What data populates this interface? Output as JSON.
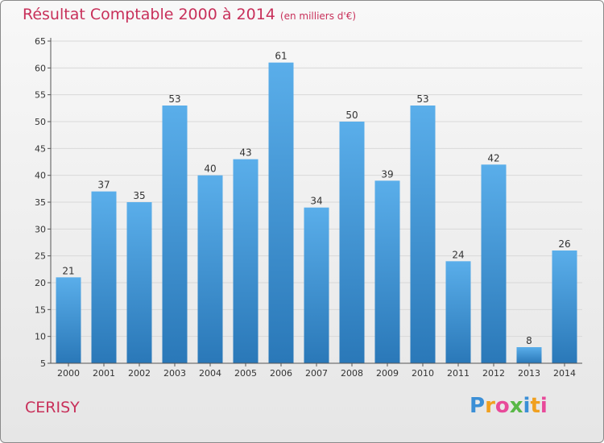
{
  "chart_data": {
    "type": "bar",
    "title": "Résultat Comptable 2000 à 2014",
    "subtitle": "(en milliers d'€)",
    "categories": [
      "2000",
      "2001",
      "2002",
      "2003",
      "2004",
      "2005",
      "2006",
      "2007",
      "2008",
      "2009",
      "2010",
      "2011",
      "2012",
      "2013",
      "2014"
    ],
    "values": [
      21,
      37,
      35,
      53,
      40,
      43,
      61,
      34,
      50,
      39,
      53,
      24,
      42,
      8,
      26
    ],
    "ylim": [
      5,
      65
    ],
    "yticks": [
      5,
      10,
      15,
      20,
      25,
      30,
      35,
      40,
      45,
      50,
      55,
      60,
      65
    ],
    "xlabel": "",
    "ylabel": "",
    "grid": true,
    "bar_color": "#3a93d8"
  },
  "commune": "CERISY",
  "logo": {
    "letters": [
      "P",
      "r",
      "o",
      "x",
      "i",
      "t",
      "i"
    ],
    "colors": [
      "#3b8fd6",
      "#f0a020",
      "#e84a9a",
      "#59b847",
      "#3b8fd6",
      "#f0a020",
      "#e84a9a"
    ]
  }
}
